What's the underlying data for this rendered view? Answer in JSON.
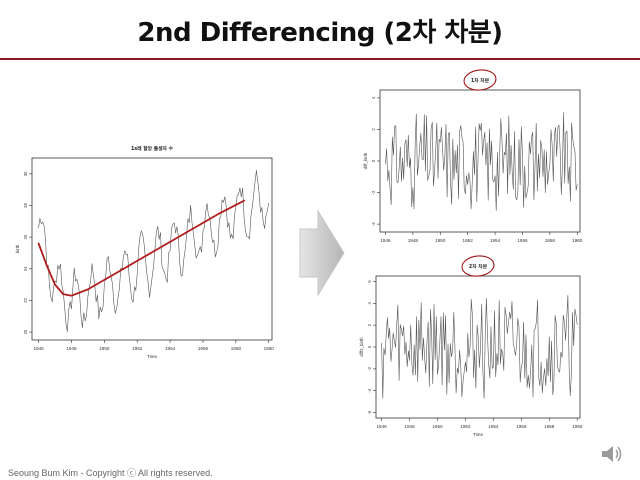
{
  "slide": {
    "title": "2nd Differencing (2차 차분)",
    "footer": "Seoung Bum Kim - Copyright ⓒ All rights reserved.",
    "colors": {
      "accent": "#8b1a22",
      "series": "#555555",
      "trend": "#b01c1c",
      "annotation": "#a01818"
    },
    "icons": {
      "arrow": "right-arrow-icon",
      "speaker": "speaker-icon"
    }
  },
  "chart_data": [
    {
      "type": "line",
      "title": "1s레 할망 출생자 수",
      "xlabel": "Time",
      "ylabel": "birth",
      "xlim": [
        1945.6,
        1960.2
      ],
      "ylim": [
        19.5,
        31.0
      ],
      "xticks": [
        1946,
        1948,
        1950,
        1952,
        1954,
        1956,
        1958,
        1960
      ],
      "yticks": [
        20,
        22,
        24,
        26,
        28,
        30
      ],
      "series": [
        {
          "name": "",
          "generator": "seasonal-monthly",
          "start": 1946.0,
          "end": 1960.0,
          "base": [
            26.6,
            23.0,
            22.0,
            22.2,
            22.8,
            23.4,
            24.0,
            24.6,
            25.2,
            25.8,
            26.4,
            27.0,
            27.6,
            28.0,
            28.2
          ],
          "amplitude": 1.6
        },
        {
          "name": "",
          "role": "smooth-trend",
          "x": [
            1946,
            1946.5,
            1947,
            1947.5,
            1948,
            1949,
            1950,
            1951,
            1952,
            1953,
            1954,
            1955,
            1956,
            1957,
            1958.5
          ],
          "y": [
            25.6,
            24.2,
            23.0,
            22.4,
            22.3,
            22.7,
            23.3,
            23.9,
            24.5,
            25.1,
            25.7,
            26.3,
            26.9,
            27.5,
            28.3
          ]
        }
      ]
    },
    {
      "type": "line",
      "title": "1차 차분",
      "xlabel": "",
      "ylabel": "diff_birth",
      "xlim": [
        1945.6,
        1960.2
      ],
      "ylim": [
        -4.5,
        4.5
      ],
      "xticks": [
        1946,
        1948,
        1950,
        1952,
        1954,
        1956,
        1958,
        1960
      ],
      "yticks": [
        -4,
        -2,
        0,
        2,
        4
      ],
      "series": [
        {
          "name": "",
          "generator": "first-difference",
          "start": 1946.0,
          "end": 1960.0,
          "amplitude": 3.2
        }
      ]
    },
    {
      "type": "line",
      "title": "2차 차분",
      "xlabel": "Time",
      "ylabel": "diff2_birth",
      "xlim": [
        1945.6,
        1960.2
      ],
      "ylim": [
        -6.5,
        6.5
      ],
      "xticks": [
        1946,
        1948,
        1950,
        1952,
        1954,
        1956,
        1958,
        1960
      ],
      "yticks": [
        -6,
        -4,
        -2,
        0,
        2,
        4,
        6
      ],
      "series": [
        {
          "name": "",
          "generator": "second-difference",
          "start": 1946.0,
          "end": 1960.0,
          "amplitude": 5.0
        }
      ]
    }
  ]
}
